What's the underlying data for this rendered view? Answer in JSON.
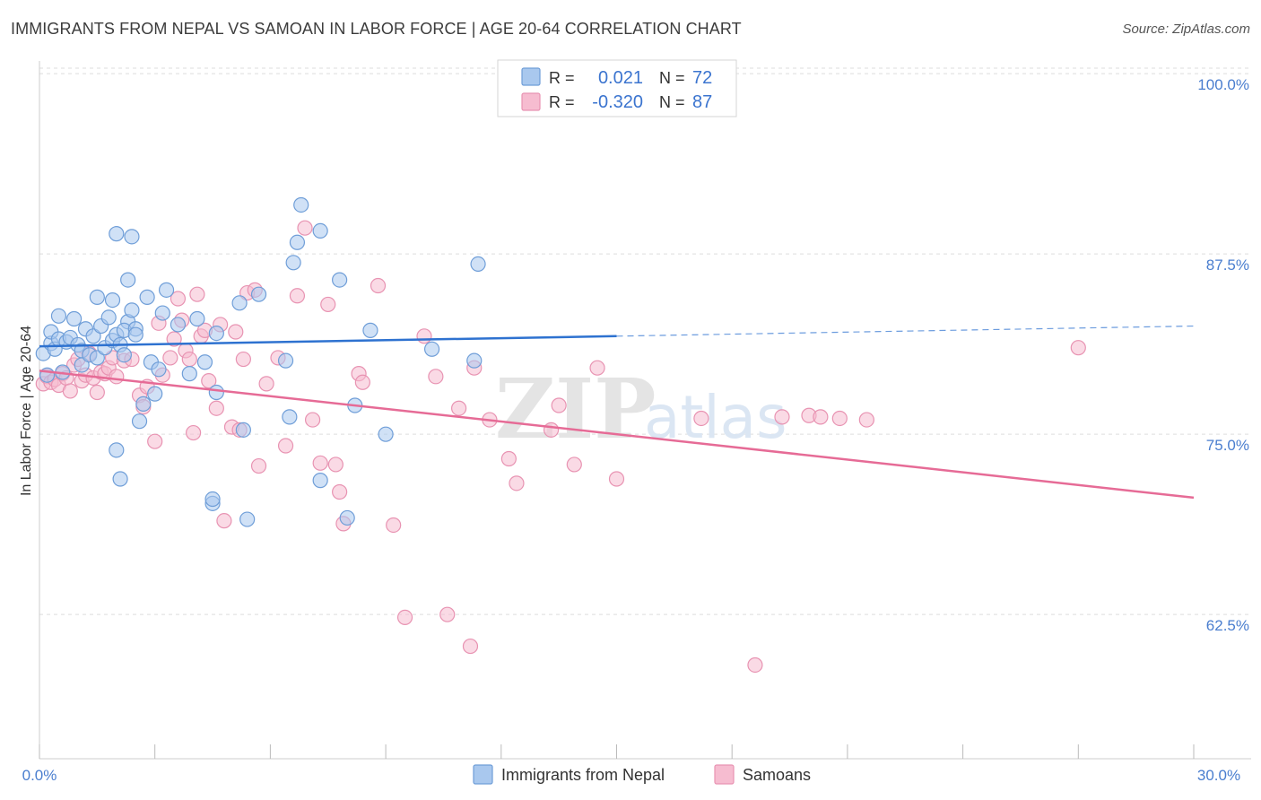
{
  "title": "IMMIGRANTS FROM NEPAL VS SAMOAN IN LABOR FORCE | AGE 20-64 CORRELATION CHART",
  "source": "Source: ZipAtlas.com",
  "watermark": {
    "zip": "ZIP",
    "atlas": "atlas"
  },
  "colors": {
    "blue_fill": "#a9c8ee",
    "blue_stroke": "#6f9ed8",
    "blue_line": "#2e72d0",
    "pink_fill": "#f6bcd0",
    "pink_stroke": "#e893b2",
    "pink_line": "#e66b96",
    "tick_label": "#4a7ecf",
    "grid": "#dddddd"
  },
  "stats": {
    "r_label": "R =",
    "n_label": "N =",
    "series": [
      {
        "r": "0.021",
        "n": "72"
      },
      {
        "r": "-0.320",
        "n": "87"
      }
    ]
  },
  "chart_data": {
    "type": "scatter",
    "title": "IMMIGRANTS FROM NEPAL VS SAMOAN IN LABOR FORCE | AGE 20-64 CORRELATION CHART",
    "xlabel": "",
    "ylabel": "In Labor Force | Age 20-64",
    "xlim": [
      0,
      30
    ],
    "ylim": [
      52.5,
      101.5
    ],
    "x_tick_labels": [
      "0.0%",
      "30.0%"
    ],
    "y_ticks": [
      62.5,
      75.0,
      87.5,
      100.0
    ],
    "y_tick_labels": [
      "62.5%",
      "75.0%",
      "87.5%",
      "100.0%"
    ],
    "grid": true,
    "legend_position": "bottom-center",
    "series": [
      {
        "name": "Immigrants from Nepal",
        "r": 0.021,
        "n": 72,
        "trend": {
          "x": [
            0.0,
            15.0
          ],
          "y": [
            81.1,
            81.8
          ]
        },
        "trend_extension": {
          "x": [
            15.0,
            30.0
          ],
          "y": [
            81.8,
            82.5
          ]
        },
        "points": [
          [
            0.1,
            80.6
          ],
          [
            0.2,
            79.1
          ],
          [
            0.3,
            81.3
          ],
          [
            0.3,
            82.1
          ],
          [
            0.4,
            80.9
          ],
          [
            0.5,
            81.6
          ],
          [
            0.5,
            83.2
          ],
          [
            0.6,
            79.3
          ],
          [
            0.7,
            81.4
          ],
          [
            0.8,
            81.7
          ],
          [
            0.9,
            83.0
          ],
          [
            1.0,
            81.2
          ],
          [
            1.1,
            80.8
          ],
          [
            1.1,
            79.8
          ],
          [
            1.2,
            82.3
          ],
          [
            1.3,
            80.5
          ],
          [
            1.4,
            81.8
          ],
          [
            1.5,
            84.5
          ],
          [
            1.5,
            80.3
          ],
          [
            1.6,
            82.5
          ],
          [
            1.7,
            81.0
          ],
          [
            1.8,
            83.1
          ],
          [
            1.9,
            84.3
          ],
          [
            1.9,
            81.5
          ],
          [
            2.0,
            81.9
          ],
          [
            2.1,
            81.2
          ],
          [
            2.2,
            80.5
          ],
          [
            2.0,
            88.9
          ],
          [
            2.3,
            82.8
          ],
          [
            2.0,
            73.9
          ],
          [
            2.1,
            71.9
          ],
          [
            2.2,
            82.2
          ],
          [
            2.3,
            85.7
          ],
          [
            2.4,
            83.6
          ],
          [
            2.4,
            88.7
          ],
          [
            2.5,
            82.3
          ],
          [
            2.5,
            81.9
          ],
          [
            2.6,
            75.9
          ],
          [
            2.7,
            77.1
          ],
          [
            2.8,
            84.5
          ],
          [
            2.9,
            80.0
          ],
          [
            3.0,
            77.8
          ],
          [
            3.1,
            79.5
          ],
          [
            3.2,
            83.4
          ],
          [
            3.3,
            85.0
          ],
          [
            3.6,
            82.6
          ],
          [
            3.9,
            79.2
          ],
          [
            4.1,
            83.0
          ],
          [
            4.3,
            80.0
          ],
          [
            4.5,
            70.2
          ],
          [
            4.5,
            70.5
          ],
          [
            4.6,
            77.9
          ],
          [
            4.6,
            82.0
          ],
          [
            5.2,
            84.1
          ],
          [
            5.3,
            75.3
          ],
          [
            5.4,
            69.1
          ],
          [
            5.7,
            84.7
          ],
          [
            6.4,
            80.1
          ],
          [
            6.5,
            76.2
          ],
          [
            6.6,
            86.9
          ],
          [
            6.7,
            88.3
          ],
          [
            6.8,
            90.9
          ],
          [
            7.3,
            89.1
          ],
          [
            7.3,
            71.8
          ],
          [
            7.8,
            85.7
          ],
          [
            8.0,
            69.2
          ],
          [
            8.2,
            77.0
          ],
          [
            8.6,
            82.2
          ],
          [
            9.0,
            75.0
          ],
          [
            10.2,
            80.9
          ],
          [
            11.3,
            80.1
          ],
          [
            11.4,
            86.8
          ]
        ]
      },
      {
        "name": "Samoans",
        "r": -0.32,
        "n": 87,
        "trend": {
          "x": [
            0.0,
            30.0
          ],
          "y": [
            79.4,
            70.6
          ]
        },
        "points": [
          [
            0.1,
            78.5
          ],
          [
            0.2,
            79.0
          ],
          [
            0.3,
            78.6
          ],
          [
            0.4,
            78.8
          ],
          [
            0.5,
            78.4
          ],
          [
            0.6,
            79.2
          ],
          [
            0.7,
            78.9
          ],
          [
            0.8,
            78.0
          ],
          [
            0.9,
            79.8
          ],
          [
            1.0,
            80.2
          ],
          [
            1.1,
            78.7
          ],
          [
            1.2,
            79.1
          ],
          [
            1.3,
            80.6
          ],
          [
            1.4,
            78.9
          ],
          [
            1.5,
            77.9
          ],
          [
            1.6,
            79.3
          ],
          [
            1.7,
            79.2
          ],
          [
            1.8,
            79.6
          ],
          [
            1.9,
            80.3
          ],
          [
            2.0,
            79.0
          ],
          [
            2.2,
            80.1
          ],
          [
            2.4,
            80.2
          ],
          [
            2.6,
            77.7
          ],
          [
            2.7,
            76.9
          ],
          [
            2.8,
            78.3
          ],
          [
            3.0,
            74.5
          ],
          [
            3.1,
            82.7
          ],
          [
            3.2,
            79.1
          ],
          [
            3.4,
            80.3
          ],
          [
            3.5,
            81.6
          ],
          [
            3.6,
            84.4
          ],
          [
            3.7,
            82.9
          ],
          [
            3.8,
            80.8
          ],
          [
            3.9,
            80.2
          ],
          [
            4.0,
            75.1
          ],
          [
            4.1,
            84.7
          ],
          [
            4.2,
            81.8
          ],
          [
            4.3,
            82.2
          ],
          [
            4.4,
            78.7
          ],
          [
            4.6,
            76.8
          ],
          [
            4.7,
            82.6
          ],
          [
            4.8,
            69.0
          ],
          [
            5.0,
            75.5
          ],
          [
            5.1,
            82.1
          ],
          [
            5.2,
            75.3
          ],
          [
            5.3,
            80.2
          ],
          [
            5.4,
            84.8
          ],
          [
            5.6,
            85.0
          ],
          [
            5.7,
            72.8
          ],
          [
            5.9,
            78.5
          ],
          [
            6.2,
            80.3
          ],
          [
            6.4,
            74.2
          ],
          [
            6.7,
            84.6
          ],
          [
            6.9,
            89.3
          ],
          [
            7.1,
            76.0
          ],
          [
            7.3,
            73.0
          ],
          [
            7.5,
            84.0
          ],
          [
            7.7,
            72.9
          ],
          [
            7.8,
            71.0
          ],
          [
            7.9,
            68.8
          ],
          [
            8.3,
            79.2
          ],
          [
            8.4,
            78.6
          ],
          [
            8.8,
            85.3
          ],
          [
            9.2,
            68.7
          ],
          [
            9.5,
            62.3
          ],
          [
            10.0,
            81.8
          ],
          [
            10.3,
            79.0
          ],
          [
            10.6,
            62.5
          ],
          [
            10.9,
            76.8
          ],
          [
            11.2,
            60.3
          ],
          [
            11.3,
            79.6
          ],
          [
            11.7,
            76.0
          ],
          [
            12.2,
            73.3
          ],
          [
            12.4,
            71.6
          ],
          [
            13.3,
            75.3
          ],
          [
            13.5,
            77.0
          ],
          [
            13.9,
            72.9
          ],
          [
            14.5,
            79.6
          ],
          [
            15.0,
            71.9
          ],
          [
            17.2,
            76.1
          ],
          [
            18.6,
            59.0
          ],
          [
            19.3,
            76.2
          ],
          [
            20.0,
            76.3
          ],
          [
            20.3,
            76.2
          ],
          [
            20.8,
            76.1
          ],
          [
            21.5,
            76.0
          ],
          [
            27.0,
            81.0
          ]
        ]
      }
    ]
  },
  "legend": [
    {
      "label": "Immigrants from Nepal"
    },
    {
      "label": "Samoans"
    }
  ]
}
